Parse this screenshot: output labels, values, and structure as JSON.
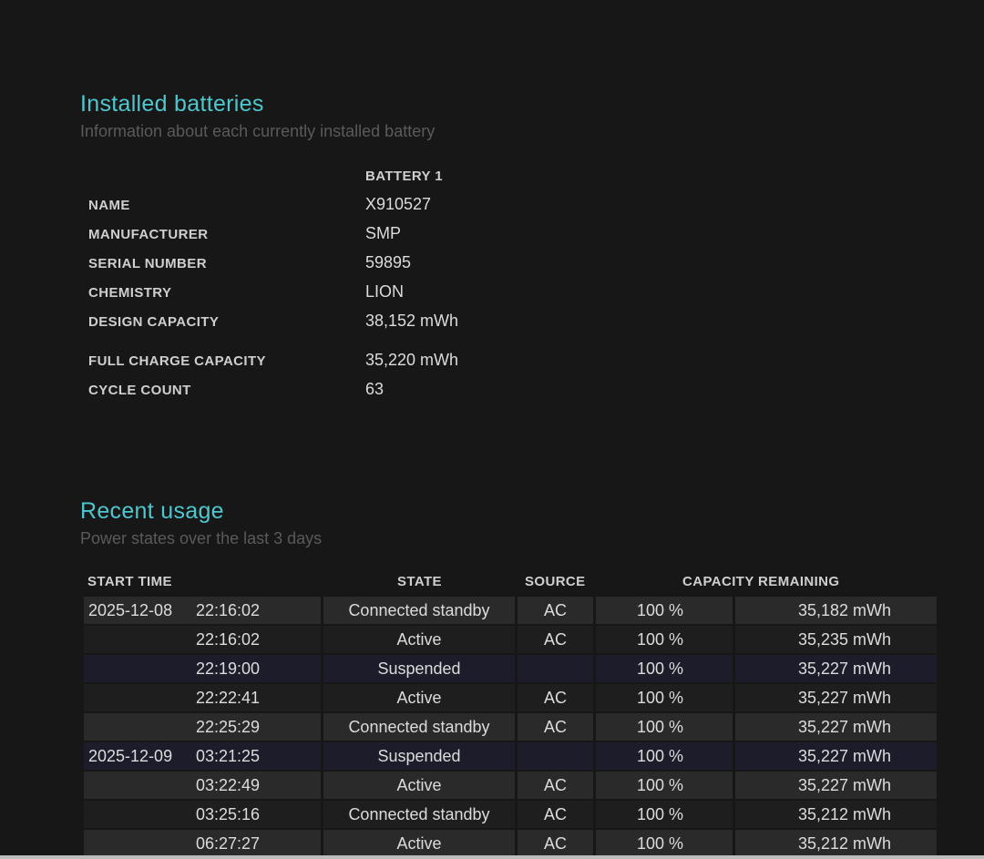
{
  "installed": {
    "title": "Installed batteries",
    "subtitle": "Information about each currently installed battery",
    "column": "BATTERY 1",
    "fields": [
      {
        "label": "NAME",
        "value": "X910527"
      },
      {
        "label": "MANUFACTURER",
        "value": "SMP"
      },
      {
        "label": "SERIAL NUMBER",
        "value": "59895"
      },
      {
        "label": "CHEMISTRY",
        "value": "LION"
      },
      {
        "label": "DESIGN CAPACITY",
        "value": "38,152 mWh"
      },
      {
        "label": "FULL CHARGE CAPACITY",
        "value": "35,220 mWh"
      },
      {
        "label": "CYCLE COUNT",
        "value": "63"
      }
    ]
  },
  "usage": {
    "title": "Recent usage",
    "subtitle": "Power states over the last 3 days",
    "headers": {
      "start": "START TIME",
      "state": "STATE",
      "source": "SOURCE",
      "capacity": "CAPACITY REMAINING"
    },
    "rows": [
      {
        "date": "2025-12-08",
        "time": "22:16:02",
        "state": "Connected standby",
        "source": "AC",
        "percent": "100 %",
        "mwh": "35,182 mWh"
      },
      {
        "date": "",
        "time": "22:16:02",
        "state": "Active",
        "source": "AC",
        "percent": "100 %",
        "mwh": "35,235 mWh"
      },
      {
        "date": "",
        "time": "22:19:00",
        "state": "Suspended",
        "source": "",
        "percent": "100 %",
        "mwh": "35,227 mWh"
      },
      {
        "date": "",
        "time": "22:22:41",
        "state": "Active",
        "source": "AC",
        "percent": "100 %",
        "mwh": "35,227 mWh"
      },
      {
        "date": "",
        "time": "22:25:29",
        "state": "Connected standby",
        "source": "AC",
        "percent": "100 %",
        "mwh": "35,227 mWh"
      },
      {
        "date": "2025-12-09",
        "time": "03:21:25",
        "state": "Suspended",
        "source": "",
        "percent": "100 %",
        "mwh": "35,227 mWh"
      },
      {
        "date": "",
        "time": "03:22:49",
        "state": "Active",
        "source": "AC",
        "percent": "100 %",
        "mwh": "35,227 mWh"
      },
      {
        "date": "",
        "time": "03:25:16",
        "state": "Connected standby",
        "source": "AC",
        "percent": "100 %",
        "mwh": "35,212 mWh"
      },
      {
        "date": "",
        "time": "06:27:27",
        "state": "Active",
        "source": "AC",
        "percent": "100 %",
        "mwh": "35,212 mWh"
      }
    ]
  },
  "colors": {
    "accent": "#4fc7cf",
    "row_odd": "#2a2a2a",
    "row_even": "#1e1e1e",
    "row_suspended": "#1c1c2b"
  }
}
